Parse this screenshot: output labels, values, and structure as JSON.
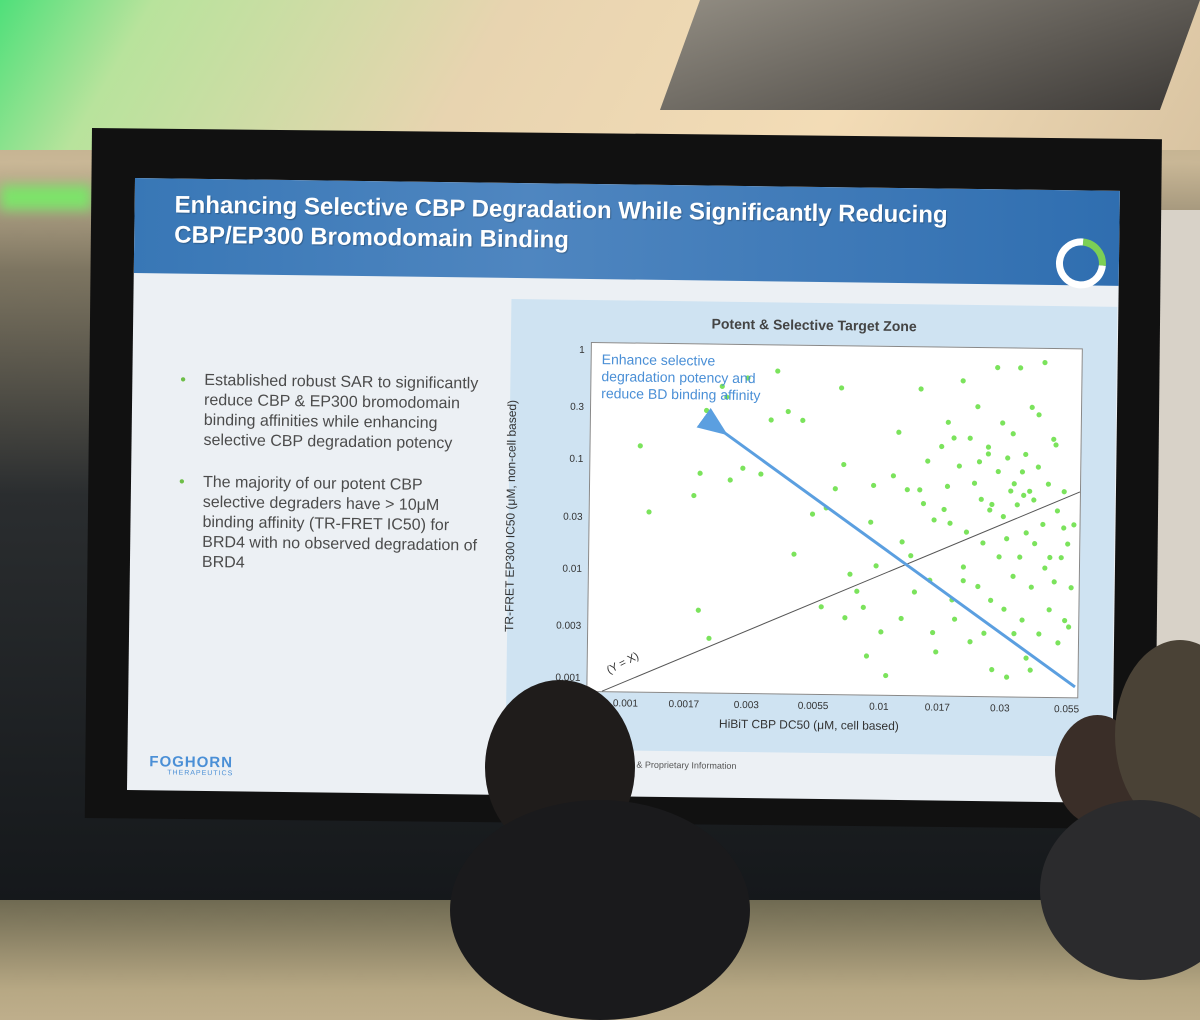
{
  "slide": {
    "title_line1": "Enhancing Selective CBP Degradation While Significantly Reducing",
    "title_line2": "CBP/EP300 Bromodomain Binding",
    "bullets": [
      "Established robust SAR to significantly reduce CBP & EP300 bromodomain binding affinities while enhancing selective CBP degradation potency",
      "The majority of our potent CBP selective degraders have > 10μM binding affinity (TR-FRET IC50) for BRD4 with no observed degradation of BRD4"
    ],
    "footer_logo": "FOGHORN",
    "footer_logo_sub": "THERAPEUTICS",
    "footer_text": "dential & Proprietary Information"
  },
  "chart_data": {
    "type": "scatter",
    "title": "Potent & Selective Target Zone",
    "xlabel": "HiBiT CBP DC50 (μM, cell based)",
    "ylabel": "TR-FRET EP300 IC50 (μM, non-cell based)",
    "x_scale": "log",
    "y_scale": "log",
    "xlim": [
      0.0007,
      0.06
    ],
    "ylim": [
      0.0008,
      1.2
    ],
    "x_ticks": [
      "0.001",
      "0.0017",
      "0.003",
      "0.0055",
      "0.01",
      "0.017",
      "0.03",
      "0.055"
    ],
    "x_tick_values": [
      0.001,
      0.0017,
      0.003,
      0.0055,
      0.01,
      0.017,
      0.03,
      0.055
    ],
    "y_ticks": [
      "1",
      "0.3",
      "0.1",
      "0.03",
      "0.01",
      "0.003",
      "0.001"
    ],
    "y_tick_values": [
      1,
      0.3,
      0.1,
      0.03,
      0.01,
      0.003,
      0.001
    ],
    "annotation": "Enhance selective degradation potency and reduce BD binding affinity",
    "reference_line_label": "(Y = X)",
    "point_color": "#7be35c",
    "arrow_color": "#5b9fe0",
    "points": [
      [
        0.0011,
        0.14
      ],
      [
        0.0012,
        0.035
      ],
      [
        0.0018,
        0.05
      ],
      [
        0.0019,
        0.08
      ],
      [
        0.0019,
        0.0045
      ],
      [
        0.0021,
        0.0025
      ],
      [
        0.002,
        0.3
      ],
      [
        0.0023,
        0.5
      ],
      [
        0.0024,
        0.4
      ],
      [
        0.0025,
        0.07
      ],
      [
        0.0028,
        0.09
      ],
      [
        0.0029,
        0.6
      ],
      [
        0.0033,
        0.08
      ],
      [
        0.0036,
        0.25
      ],
      [
        0.0038,
        0.7
      ],
      [
        0.0042,
        0.3
      ],
      [
        0.0045,
        0.015
      ],
      [
        0.0048,
        0.25
      ],
      [
        0.0053,
        0.035
      ],
      [
        0.0058,
        0.005
      ],
      [
        0.006,
        0.04
      ],
      [
        0.0065,
        0.06
      ],
      [
        0.0068,
        0.5
      ],
      [
        0.007,
        0.1
      ],
      [
        0.0072,
        0.004
      ],
      [
        0.0075,
        0.01
      ],
      [
        0.008,
        0.007
      ],
      [
        0.0085,
        0.005
      ],
      [
        0.0088,
        0.0018
      ],
      [
        0.009,
        0.03
      ],
      [
        0.0092,
        0.065
      ],
      [
        0.0095,
        0.012
      ],
      [
        0.01,
        0.003
      ],
      [
        0.0105,
        0.0012
      ],
      [
        0.011,
        0.08
      ],
      [
        0.0115,
        0.2
      ],
      [
        0.012,
        0.02
      ],
      [
        0.0125,
        0.06
      ],
      [
        0.013,
        0.015
      ],
      [
        0.0135,
        0.007
      ],
      [
        0.014,
        0.06
      ],
      [
        0.0145,
        0.045
      ],
      [
        0.015,
        0.11
      ],
      [
        0.0155,
        0.009
      ],
      [
        0.016,
        0.003
      ],
      [
        0.0165,
        0.002
      ],
      [
        0.017,
        0.15
      ],
      [
        0.0175,
        0.04
      ],
      [
        0.018,
        0.25
      ],
      [
        0.0185,
        0.03
      ],
      [
        0.019,
        0.006
      ],
      [
        0.0195,
        0.004
      ],
      [
        0.02,
        0.1
      ],
      [
        0.0205,
        0.6
      ],
      [
        0.021,
        0.012
      ],
      [
        0.0215,
        0.025
      ],
      [
        0.022,
        0.18
      ],
      [
        0.0225,
        0.0025
      ],
      [
        0.023,
        0.07
      ],
      [
        0.0235,
        0.35
      ],
      [
        0.024,
        0.008
      ],
      [
        0.0245,
        0.05
      ],
      [
        0.025,
        0.02
      ],
      [
        0.0255,
        0.003
      ],
      [
        0.026,
        0.15
      ],
      [
        0.0265,
        0.04
      ],
      [
        0.027,
        0.006
      ],
      [
        0.0275,
        0.0014
      ],
      [
        0.028,
        0.8
      ],
      [
        0.0285,
        0.09
      ],
      [
        0.029,
        0.015
      ],
      [
        0.0295,
        0.25
      ],
      [
        0.03,
        0.035
      ],
      [
        0.0305,
        0.005
      ],
      [
        0.031,
        0.12
      ],
      [
        0.0315,
        0.0012
      ],
      [
        0.032,
        0.06
      ],
      [
        0.0325,
        0.2
      ],
      [
        0.033,
        0.01
      ],
      [
        0.0335,
        0.003
      ],
      [
        0.034,
        0.045
      ],
      [
        0.0345,
        0.8
      ],
      [
        0.035,
        0.015
      ],
      [
        0.0355,
        0.09
      ],
      [
        0.036,
        0.004
      ],
      [
        0.0365,
        0.13
      ],
      [
        0.037,
        0.025
      ],
      [
        0.0375,
        0.0018
      ],
      [
        0.038,
        0.06
      ],
      [
        0.0385,
        0.35
      ],
      [
        0.039,
        0.008
      ],
      [
        0.0395,
        0.05
      ],
      [
        0.04,
        0.02
      ],
      [
        0.041,
        0.1
      ],
      [
        0.042,
        0.003
      ],
      [
        0.043,
        0.03
      ],
      [
        0.044,
        0.012
      ],
      [
        0.045,
        0.07
      ],
      [
        0.046,
        0.005
      ],
      [
        0.047,
        0.18
      ],
      [
        0.048,
        0.009
      ],
      [
        0.049,
        0.04
      ],
      [
        0.05,
        0.0025
      ],
      [
        0.051,
        0.015
      ],
      [
        0.052,
        0.06
      ],
      [
        0.053,
        0.004
      ],
      [
        0.054,
        0.02
      ],
      [
        0.055,
        0.0035
      ],
      [
        0.056,
        0.008
      ],
      [
        0.057,
        0.03
      ],
      [
        0.014,
        0.5
      ],
      [
        0.019,
        0.18
      ],
      [
        0.024,
        0.11
      ],
      [
        0.027,
        0.045
      ],
      [
        0.031,
        0.022
      ],
      [
        0.036,
        0.055
      ],
      [
        0.041,
        0.3
      ],
      [
        0.046,
        0.015
      ],
      [
        0.021,
        0.009
      ],
      [
        0.018,
        0.065
      ],
      [
        0.026,
        0.13
      ],
      [
        0.033,
        0.07
      ],
      [
        0.043,
        0.9
      ],
      [
        0.048,
        0.16
      ],
      [
        0.052,
        0.028
      ],
      [
        0.039,
        0.0014
      ],
      [
        0.016,
        0.032
      ],
      [
        0.012,
        0.004
      ]
    ]
  }
}
